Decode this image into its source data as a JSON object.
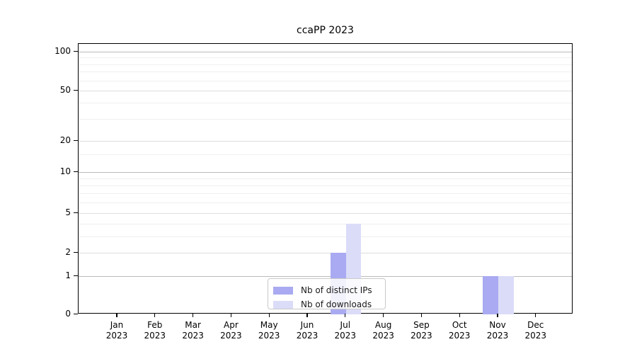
{
  "chart_data": {
    "type": "bar",
    "title": "ccaPP 2023",
    "categories": [
      "Jan",
      "Feb",
      "Mar",
      "Apr",
      "May",
      "Jun",
      "Jul",
      "Aug",
      "Sep",
      "Oct",
      "Nov",
      "Dec"
    ],
    "category_year": "2023",
    "series": [
      {
        "name": "Nb of distinct IPs",
        "color": "#a9aaf1",
        "values": [
          0,
          0,
          0,
          0,
          0,
          0,
          2,
          0,
          0,
          0,
          1,
          0
        ]
      },
      {
        "name": "Nb of downloads",
        "color": "#dbdcf8",
        "values": [
          0,
          0,
          0,
          0,
          0,
          0,
          4,
          0,
          0,
          0,
          1,
          0
        ]
      }
    ],
    "xlabel": "",
    "ylabel": "",
    "y_axis": {
      "scale": "log-like",
      "tick_values": [
        0,
        1,
        2,
        5,
        10,
        20,
        50,
        100
      ],
      "tick_labels": [
        "0",
        "1",
        "2",
        "5",
        "10",
        "20",
        "50",
        "100"
      ],
      "decade_values": [
        1,
        10,
        100
      ],
      "minor_gridline_values": [
        3,
        4,
        6,
        7,
        8,
        9,
        15,
        30,
        40,
        60,
        70,
        80,
        90
      ],
      "ylim": [
        0,
        110
      ]
    },
    "grid": "horizontal",
    "legend": {
      "position": "inside-bottom-center",
      "entries": [
        "Nb of distinct IPs",
        "Nb of downloads"
      ]
    },
    "colors": {
      "spine": "#000000",
      "grid_decade": "#bbbbbb",
      "grid_major": "#dedede",
      "grid_minor": "#efefef",
      "legend_border": "#c9c9c9",
      "text": "#000000"
    }
  }
}
